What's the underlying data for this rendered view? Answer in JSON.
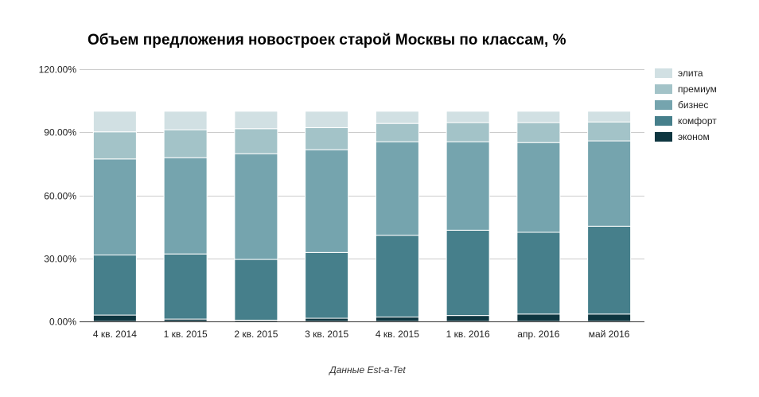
{
  "chart_data": {
    "type": "bar",
    "stacked": true,
    "title": "Объем предложения новостроек старой Москвы по классам, %",
    "source": "Данные Est-a-Tet",
    "xlabel": "",
    "ylabel": "",
    "ylim": [
      0,
      120
    ],
    "yticks": [
      0,
      30,
      60,
      90,
      120
    ],
    "ytick_labels": [
      "0.00%",
      "30.00%",
      "60.00%",
      "90.00%",
      "120.00%"
    ],
    "grid": true,
    "legend_position": "right",
    "categories": [
      "4 кв. 2014",
      "1 кв. 2015",
      "2 кв. 2015",
      "3 кв. 2015",
      "4 кв. 2015",
      "1 кв. 2016",
      "апр. 2016",
      "май 2016"
    ],
    "series": [
      {
        "name": "эконом",
        "color": "#0e3640",
        "values": [
          3.0,
          1.1,
          0.6,
          1.5,
          2.1,
          2.8,
          3.5,
          3.5
        ]
      },
      {
        "name": "комфорт",
        "color": "#467f8b",
        "values": [
          28.6,
          31.0,
          28.9,
          31.3,
          38.9,
          40.6,
          38.9,
          41.8
        ]
      },
      {
        "name": "бизнес",
        "color": "#75a4ae",
        "values": [
          45.7,
          45.8,
          50.3,
          48.9,
          44.5,
          42.1,
          42.7,
          40.6
        ]
      },
      {
        "name": "премиум",
        "color": "#a3c3c8",
        "values": [
          12.9,
          13.3,
          11.9,
          10.5,
          8.7,
          9.1,
          9.5,
          9.0
        ]
      },
      {
        "name": "элита",
        "color": "#d1e0e3",
        "values": [
          9.8,
          8.8,
          8.3,
          7.8,
          5.8,
          5.4,
          5.4,
          5.1
        ]
      }
    ]
  }
}
